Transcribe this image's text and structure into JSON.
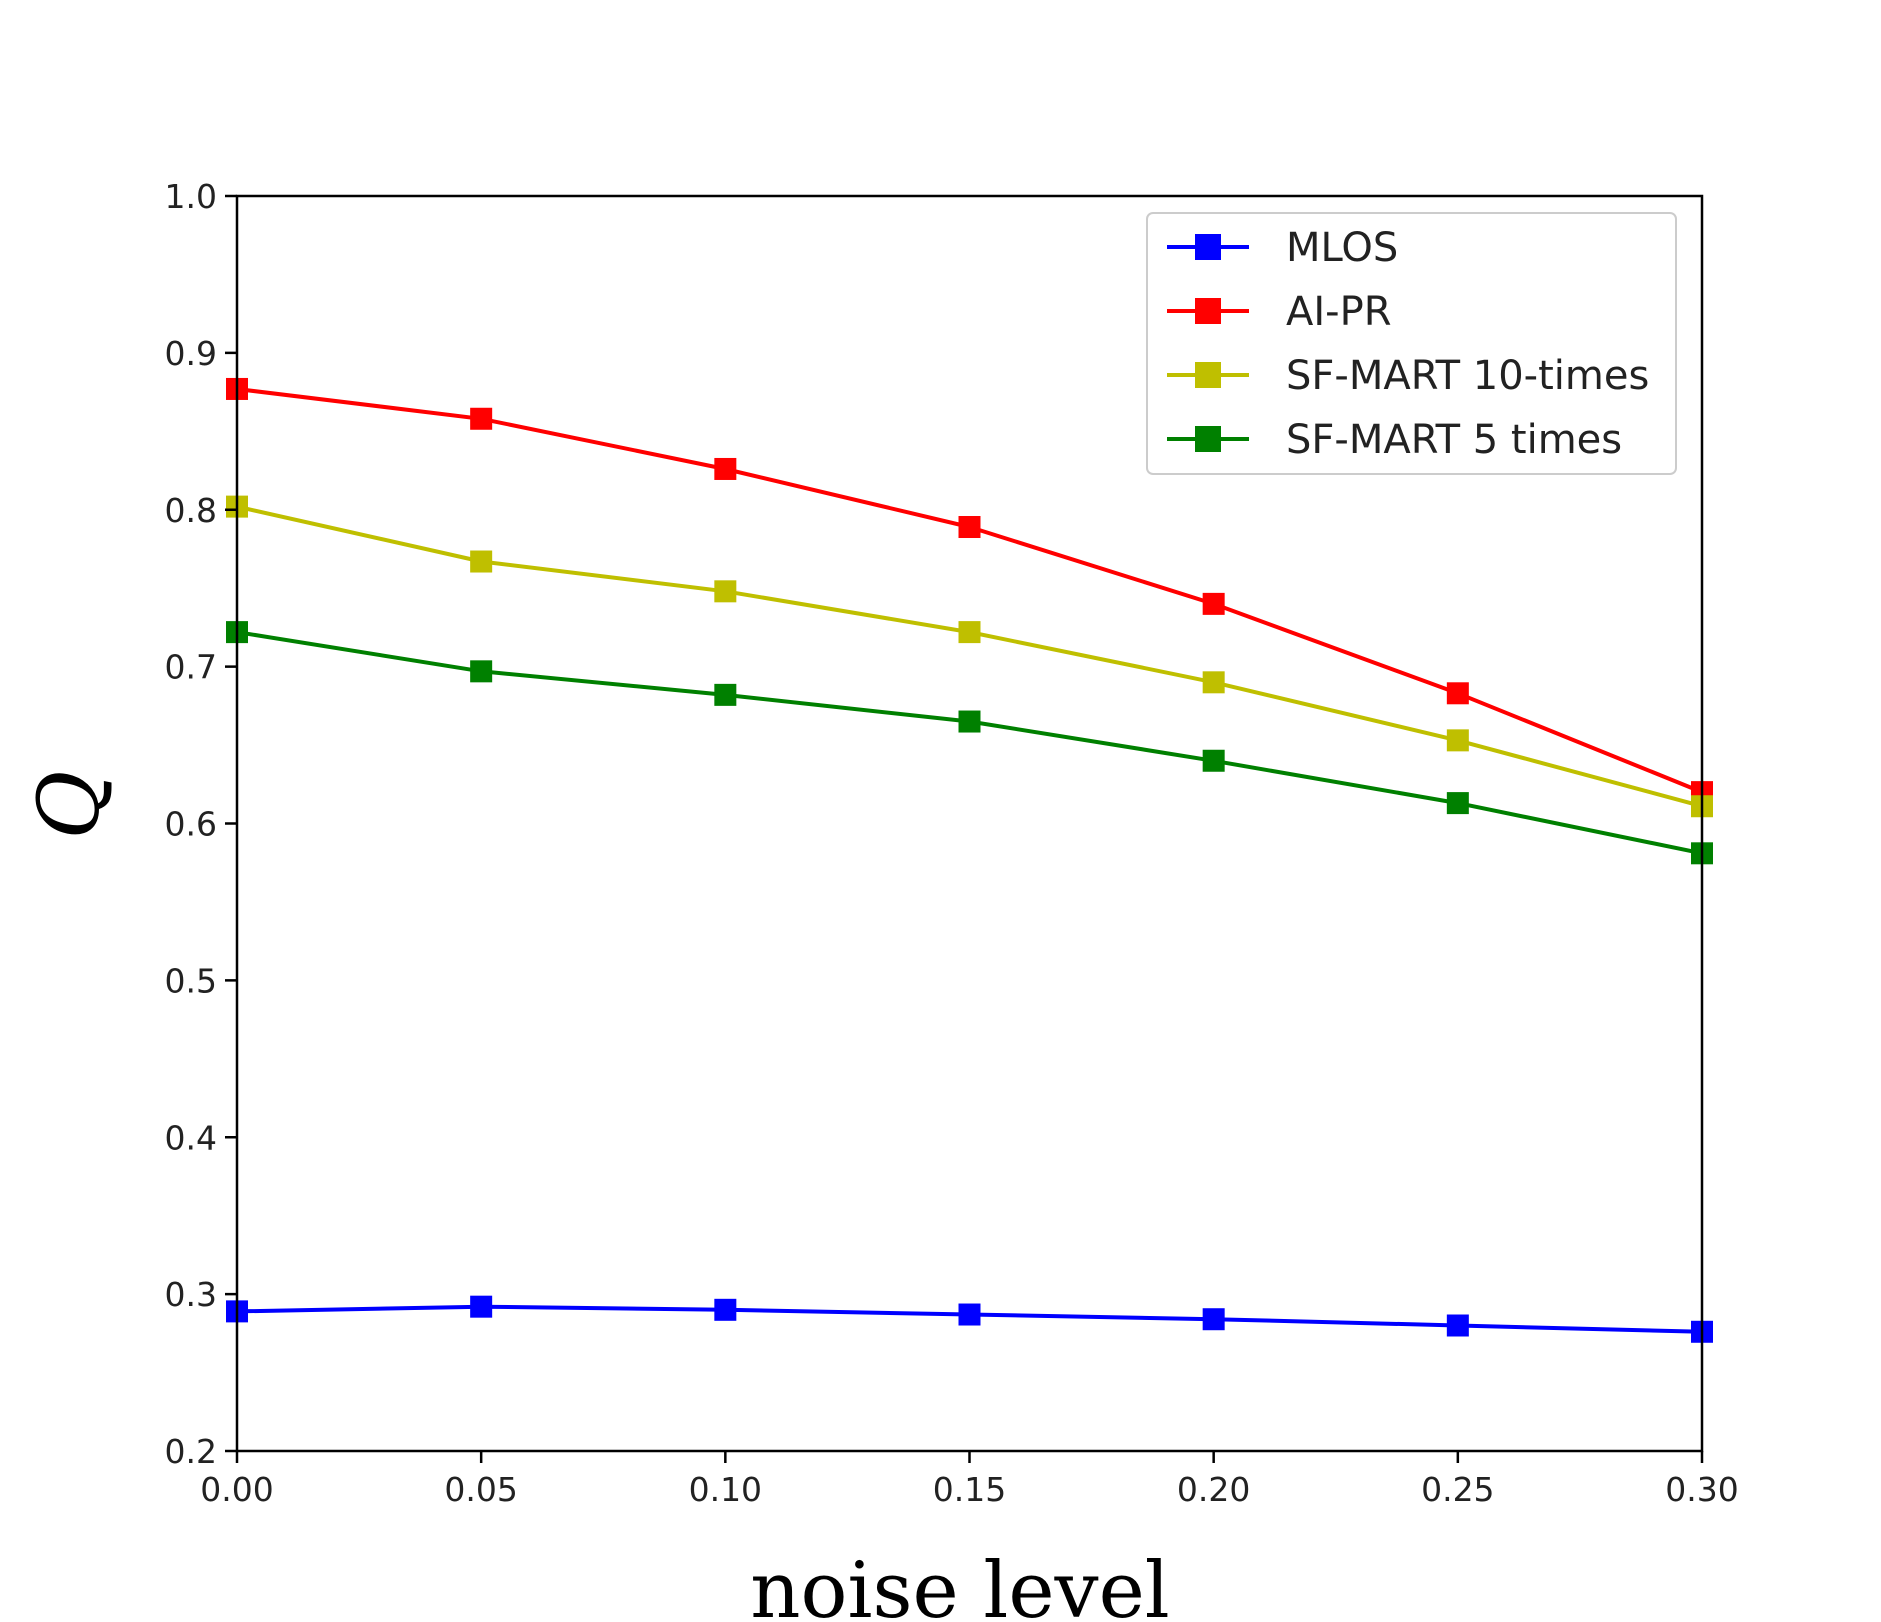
{
  "chart_data": {
    "type": "line",
    "title": "",
    "xlabel": "noise level",
    "ylabel": "Q",
    "x": [
      0.0,
      0.05,
      0.1,
      0.15,
      0.2,
      0.25,
      0.3
    ],
    "xlim": [
      0.0,
      0.3
    ],
    "ylim": [
      0.2,
      1.0
    ],
    "xticks": [
      "0.00",
      "0.05",
      "0.10",
      "0.15",
      "0.20",
      "0.25",
      "0.30"
    ],
    "yticks": [
      "0.2",
      "0.3",
      "0.4",
      "0.5",
      "0.6",
      "0.7",
      "0.8",
      "0.9",
      "1.0"
    ],
    "grid": false,
    "legend_position": "top-right",
    "marker": "square",
    "series": [
      {
        "name": "MLOS",
        "color": "#0000ff",
        "values": [
          0.289,
          0.292,
          0.29,
          0.287,
          0.284,
          0.28,
          0.276
        ]
      },
      {
        "name": "AI-PR",
        "color": "#ff0000",
        "values": [
          0.877,
          0.858,
          0.826,
          0.789,
          0.74,
          0.683,
          0.62
        ]
      },
      {
        "name": "SF-MART 10-times",
        "color": "#bfbf00",
        "values": [
          0.802,
          0.767,
          0.748,
          0.722,
          0.69,
          0.653,
          0.611
        ]
      },
      {
        "name": "SF-MART 5 times",
        "color": "#008000",
        "values": [
          0.722,
          0.697,
          0.682,
          0.665,
          0.64,
          0.613,
          0.581
        ]
      }
    ]
  }
}
